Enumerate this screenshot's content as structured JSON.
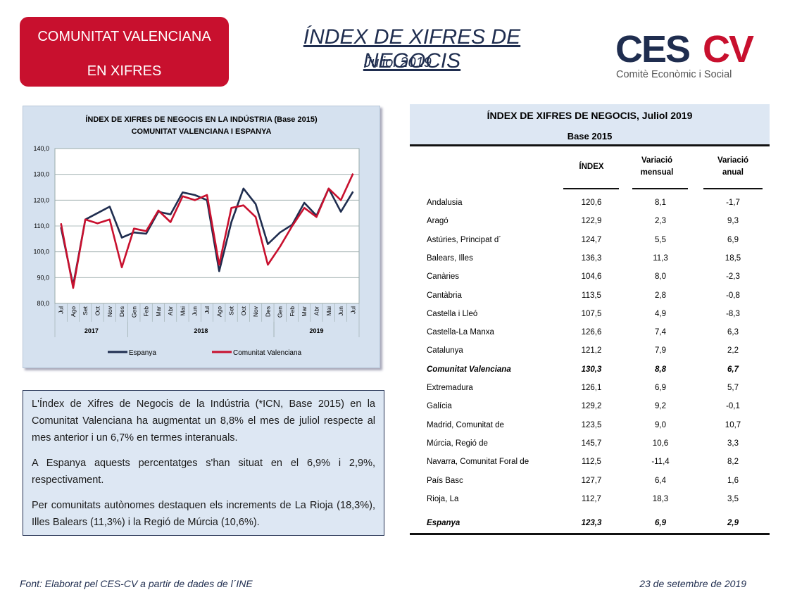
{
  "badge": {
    "line1": "COMUNITAT VALENCIANA",
    "line2": "EN XIFRES"
  },
  "header": {
    "title": "ÍNDEX DE XIFRES DE NEGOCIS",
    "subtitle": "Juliol 2019"
  },
  "logo": {
    "wordmark_left": "CES",
    "wordmark_right": "CV",
    "tagline": "Comitè Econòmic i Social",
    "dark": "#1f2d4f",
    "red": "#c8102e"
  },
  "chart_data": {
    "type": "line",
    "title": "ÍNDEX DE XIFRES DE NEGOCIS EN LA INDÚSTRIA (Base 2015)",
    "subtitle": "COMUNITAT  VALENCIANA  I ESPANYA",
    "categories": [
      "Jul",
      "Ago",
      "Set",
      "Oct",
      "Nov",
      "Des",
      "Gen",
      "Feb",
      "Mar",
      "Abr",
      "Mai",
      "Jun",
      "Jul",
      "Ago",
      "Set",
      "Oct",
      "Nov",
      "Des",
      "Gen",
      "Feb",
      "Mar",
      "Abr",
      "Mai",
      "Jun",
      "Jul"
    ],
    "years": [
      {
        "label": "2017",
        "start": 0,
        "end": 5
      },
      {
        "label": "2018",
        "start": 6,
        "end": 17
      },
      {
        "label": "2019",
        "start": 18,
        "end": 24
      }
    ],
    "ylim": [
      80,
      140
    ],
    "yticks": [
      "80,0",
      "90,0",
      "100,0",
      "110,0",
      "120,0",
      "130,0",
      "140,0"
    ],
    "grid": true,
    "legend_position": "bottom",
    "series": [
      {
        "name": "Espanya",
        "color": "#1f2d4f",
        "values": [
          109.5,
          87,
          112.5,
          115,
          117.5,
          105.5,
          107.5,
          107,
          115.5,
          114.5,
          123,
          122,
          120,
          92.5,
          111.5,
          124.5,
          118.5,
          103,
          107.5,
          110.5,
          119,
          114,
          124.5,
          115.5,
          123.3
        ]
      },
      {
        "name": "Comunitat Valenciana",
        "color": "#c8102e",
        "values": [
          111,
          86,
          112.5,
          111,
          112.5,
          94,
          109,
          108,
          116,
          111.5,
          121.5,
          120,
          122,
          95,
          117,
          118,
          113.5,
          95,
          102,
          110,
          117,
          113.5,
          124.5,
          120,
          130.3
        ]
      }
    ]
  },
  "summary": {
    "p1": "L'Índex de Xifres de Negocis de la Indústria (*ICN, Base 2015) en la Comunitat Valenciana ha augmentat un 8,8% el mes de juliol respecte al mes anterior i un 6,7% en termes interanuals.",
    "p2": "A Espanya aquests percentatges s'han situat en el 6,9% i 2,9%, respectivament.",
    "p3": "Per comunitats autònomes destaquen els increments de La Rioja (18,3%), Illes Balears (11,3%) i la Regió de Múrcia (10,6%)."
  },
  "table": {
    "title": "ÍNDEX DE XIFRES DE NEGOCIS, Juliol 2019",
    "subtitle": "Base 2015",
    "col_index": "ÍNDEX",
    "col_monthly": "Variació mensual",
    "col_annual": "Variació anual",
    "rows": [
      {
        "region": "Andalusia",
        "index": "120,6",
        "monthly": "8,1",
        "annual": "-1,7"
      },
      {
        "region": "Aragó",
        "index": "122,9",
        "monthly": "2,3",
        "annual": "9,3"
      },
      {
        "region": "Astúries, Principat d´",
        "index": "124,7",
        "monthly": "5,5",
        "annual": "6,9"
      },
      {
        "region": "Balears, Illes",
        "index": "136,3",
        "monthly": "11,3",
        "annual": "18,5"
      },
      {
        "region": "Canàries",
        "index": "104,6",
        "monthly": "8,0",
        "annual": "-2,3"
      },
      {
        "region": "Cantàbria",
        "index": "113,5",
        "monthly": "2,8",
        "annual": "-0,8"
      },
      {
        "region": "Castella i Lleó",
        "index": "107,5",
        "monthly": "4,9",
        "annual": "-8,3"
      },
      {
        "region": "Castella-La Manxa",
        "index": "126,6",
        "monthly": "7,4",
        "annual": "6,3"
      },
      {
        "region": "Catalunya",
        "index": "121,2",
        "monthly": "7,9",
        "annual": "2,2"
      },
      {
        "region": "Comunitat Valenciana",
        "index": "130,3",
        "monthly": "8,8",
        "annual": "6,7",
        "bold": true
      },
      {
        "region": "Extremadura",
        "index": "126,1",
        "monthly": "6,9",
        "annual": "5,7"
      },
      {
        "region": "Galícia",
        "index": "129,2",
        "monthly": "9,2",
        "annual": "-0,1"
      },
      {
        "region": "Madrid, Comunitat de",
        "index": "123,5",
        "monthly": "9,0",
        "annual": "10,7"
      },
      {
        "region": "Múrcia, Regió de",
        "index": "145,7",
        "monthly": "10,6",
        "annual": "3,3"
      },
      {
        "region": "Navarra, Comunitat Foral de",
        "index": "112,5",
        "monthly": "-11,4",
        "annual": "8,2"
      },
      {
        "region": "País Basc",
        "index": "127,7",
        "monthly": "6,4",
        "annual": "1,6"
      },
      {
        "region": "Rioja, La",
        "index": "112,7",
        "monthly": "18,3",
        "annual": "3,5"
      },
      {
        "region": "Espanya",
        "index": "123,3",
        "monthly": "6,9",
        "annual": "2,9",
        "bold": true
      }
    ]
  },
  "footer": {
    "source": "Font: Elaborat pel CES-CV a partir de dades de l´INE",
    "date": "23 de setembre de 2019"
  }
}
